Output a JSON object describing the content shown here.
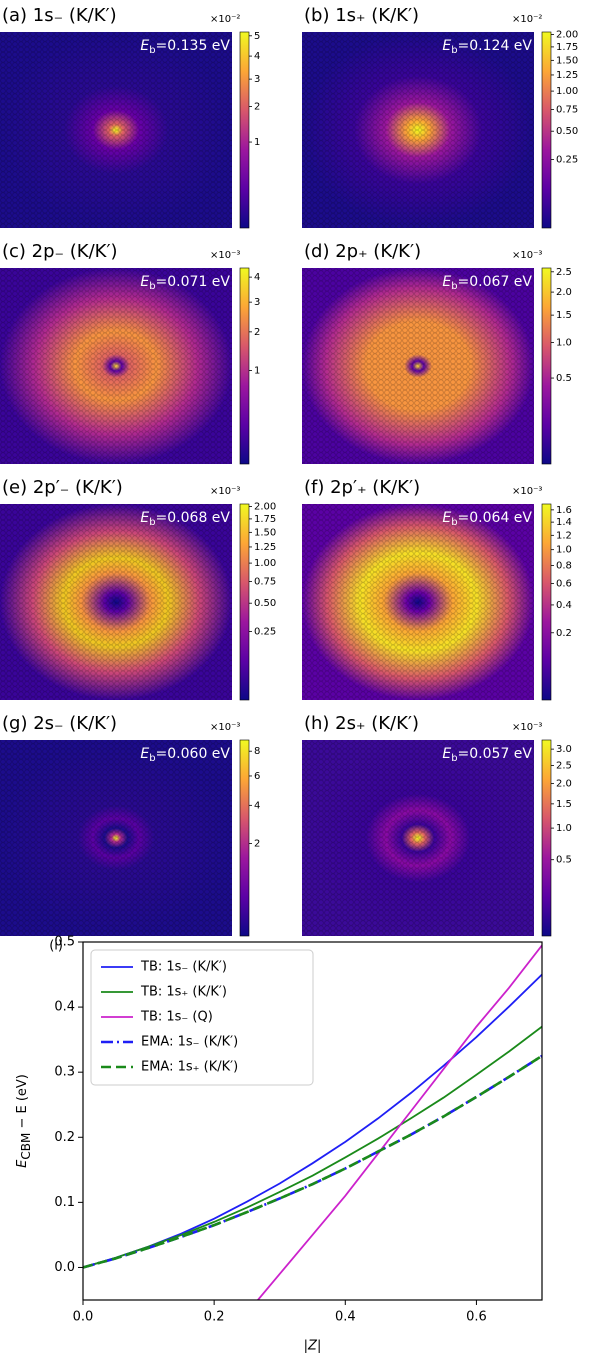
{
  "chart_data": [
    {
      "type": "heatmap",
      "title": "(a) 1s₋ (K/K′)",
      "annotation": {
        "symbol": "E",
        "subscript": "b",
        "text": "=0.135 eV"
      },
      "colorbar": {
        "scale": "×10⁻²",
        "norm": "sqrt",
        "clim": [
          0,
          5.2
        ],
        "ticks": [
          1,
          2,
          3,
          4,
          5
        ]
      }
    },
    {
      "type": "heatmap",
      "title": "(b) 1s₊ (K/K′)",
      "annotation": {
        "symbol": "E",
        "subscript": "b",
        "text": "=0.124 eV"
      },
      "colorbar": {
        "scale": "×10⁻²",
        "norm": "sqrt",
        "clim": [
          0,
          2.05
        ],
        "ticks": [
          0.25,
          {
            "value": 0.5,
            "label": "0.50"
          },
          0.75,
          {
            "value": 1,
            "label": "1.00"
          },
          1.25,
          {
            "value": 1.5,
            "label": "1.50"
          },
          1.75,
          {
            "value": 2,
            "label": "2.00"
          }
        ]
      }
    },
    {
      "type": "heatmap",
      "title": "(c) 2p₋ (K/K′)",
      "annotation": {
        "symbol": "E",
        "subscript": "b",
        "text": "=0.071 eV"
      },
      "colorbar": {
        "scale": "×10⁻³",
        "norm": "sqrt",
        "clim": [
          0,
          4.4
        ],
        "ticks": [
          1,
          2,
          3,
          4
        ]
      }
    },
    {
      "type": "heatmap",
      "title": "(d) 2p₊ (K/K′)",
      "annotation": {
        "symbol": "E",
        "subscript": "b",
        "text": "=0.067 eV"
      },
      "colorbar": {
        "scale": "×10⁻³",
        "norm": "sqrt",
        "clim": [
          0,
          2.6
        ],
        "ticks": [
          0.5,
          {
            "value": 1,
            "label": "1.0"
          },
          1.5,
          {
            "value": 2,
            "label": "2.0"
          },
          2.5
        ]
      }
    },
    {
      "type": "heatmap",
      "title": "(e) 2p′₋ (K/K′)",
      "annotation": {
        "symbol": "E",
        "subscript": "b",
        "text": "=0.068 eV"
      },
      "colorbar": {
        "scale": "×10⁻³",
        "norm": "sqrt",
        "clim": [
          0,
          2.05
        ],
        "ticks": [
          0.25,
          {
            "value": 0.5,
            "label": "0.50"
          },
          0.75,
          {
            "value": 1,
            "label": "1.00"
          },
          1.25,
          {
            "value": 1.5,
            "label": "1.50"
          },
          1.75,
          {
            "value": 2,
            "label": "2.00"
          }
        ]
      }
    },
    {
      "type": "heatmap",
      "title": "(f) 2p′₊ (K/K′)",
      "annotation": {
        "symbol": "E",
        "subscript": "b",
        "text": "=0.064 eV"
      },
      "colorbar": {
        "scale": "×10⁻³",
        "norm": "sqrt",
        "clim": [
          0,
          1.7
        ],
        "ticks": [
          0.2,
          0.4,
          0.6,
          0.8,
          {
            "value": 1,
            "label": "1.0"
          },
          1.2,
          1.4,
          1.6
        ]
      }
    },
    {
      "type": "heatmap",
      "title": "(g) 2s₋ (K/K′)",
      "annotation": {
        "symbol": "E",
        "subscript": "b",
        "text": "=0.060 eV"
      },
      "colorbar": {
        "scale": "×10⁻³",
        "norm": "sqrt",
        "clim": [
          0,
          9
        ],
        "ticks": [
          2,
          4,
          6,
          8
        ]
      }
    },
    {
      "type": "heatmap",
      "title": "(h) 2s₊ (K/K′)",
      "annotation": {
        "symbol": "E",
        "subscript": "b",
        "text": "=0.057 eV"
      },
      "colorbar": {
        "scale": "×10⁻³",
        "norm": "sqrt",
        "clim": [
          0,
          3.3
        ],
        "ticks": [
          0.5,
          {
            "value": 1,
            "label": "1.0"
          },
          1.5,
          {
            "value": 2,
            "label": "2.0"
          },
          2.5,
          {
            "value": 3,
            "label": "3.0"
          }
        ]
      }
    },
    {
      "type": "line",
      "label": "(i)",
      "xlabel": "|Z|",
      "ylabel": {
        "symbol": "E",
        "subscript": "CBM",
        "text": " − E (eV)"
      },
      "legend": "upper-left",
      "xlim": [
        0,
        0.7
      ],
      "ylim": [
        -0.05,
        0.5
      ],
      "xticks": [
        {
          "value": 0,
          "label": "0.0"
        },
        0.2,
        0.4,
        0.6
      ],
      "yticks": [
        {
          "value": 0,
          "label": "0.0"
        },
        0.1,
        0.2,
        0.3,
        0.4,
        0.5
      ],
      "x": [
        0,
        0.05,
        0.1,
        0.15,
        0.2,
        0.25,
        0.3,
        0.35,
        0.4,
        0.45,
        0.5,
        0.55,
        0.6,
        0.65,
        0.7
      ],
      "series": [
        {
          "name": "TB: 1s₋ (K/K′)",
          "color": "#1f1ff5",
          "dash": "solid",
          "values": [
            0,
            0.015,
            0.032,
            0.052,
            0.075,
            0.101,
            0.129,
            0.16,
            0.193,
            0.229,
            0.268,
            0.31,
            0.354,
            0.401,
            0.45
          ]
        },
        {
          "name": "TB: 1s₊ (K/K′)",
          "color": "#1a8a1a",
          "dash": "solid",
          "values": [
            0,
            0.015,
            0.032,
            0.05,
            0.07,
            0.092,
            0.116,
            0.141,
            0.169,
            0.198,
            0.229,
            0.261,
            0.296,
            0.332,
            0.37
          ]
        },
        {
          "name": "TB: 1s₋ (Q)",
          "color": "#cc22cc",
          "dash": "solid",
          "values": [
            null,
            null,
            null,
            null,
            null,
            -0.07,
            -0.01,
            0.05,
            0.11,
            0.175,
            0.24,
            0.305,
            0.37,
            0.43,
            0.495
          ]
        },
        {
          "name": "EMA: 1s₋ (K/K′)",
          "color": "#1f1ff5",
          "dash": "dashdot",
          "values": [
            0,
            0.014,
            0.03,
            0.047,
            0.065,
            0.085,
            0.106,
            0.128,
            0.152,
            0.178,
            0.204,
            0.232,
            0.262,
            0.293,
            0.325
          ]
        },
        {
          "name": "EMA: 1s₊ (K/K′)",
          "color": "#1a8a1a",
          "dash": "dashed",
          "values": [
            0,
            0.014,
            0.03,
            0.047,
            0.065,
            0.085,
            0.106,
            0.128,
            0.152,
            0.178,
            0.204,
            0.232,
            0.262,
            0.293,
            0.325
          ]
        }
      ]
    }
  ]
}
